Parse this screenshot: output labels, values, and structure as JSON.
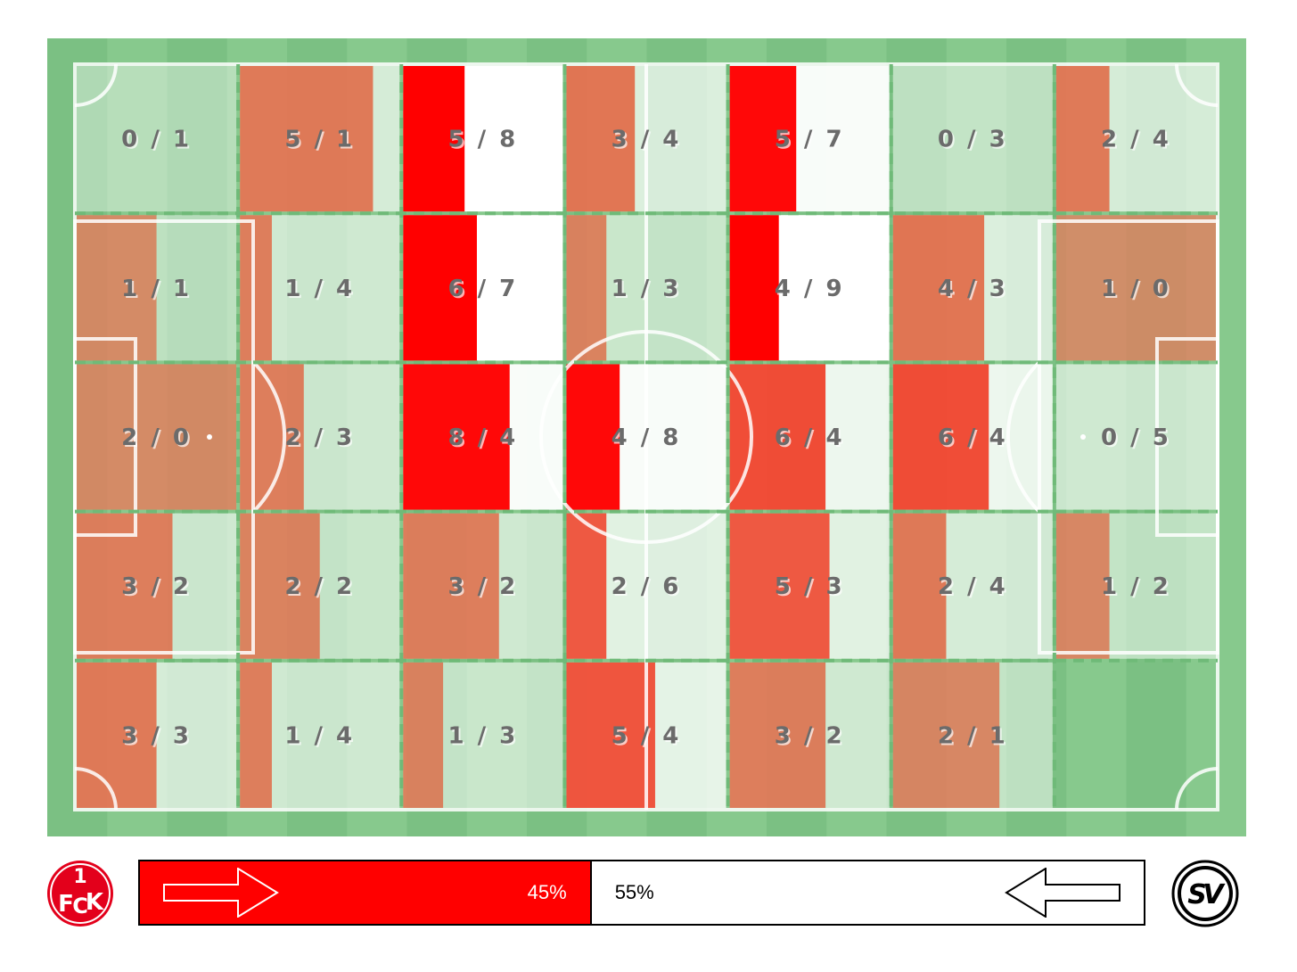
{
  "colors": {
    "home": "#ff0000",
    "away": "#ffffff",
    "grass_light": "#87c98d",
    "grass_dark": "#7bc083",
    "line": "#ffffff",
    "grid_line": "#6fba78"
  },
  "chart_data": {
    "type": "heatmap",
    "title": "",
    "xlabel": "",
    "ylabel": "",
    "rows": 5,
    "cols": 7,
    "cells": [
      [
        {
          "home": 0,
          "away": 1,
          "label": "0 / 1"
        },
        {
          "home": 5,
          "away": 1,
          "label": "5 / 1"
        },
        {
          "home": 5,
          "away": 8,
          "label": "5 / 8"
        },
        {
          "home": 3,
          "away": 4,
          "label": "3 / 4"
        },
        {
          "home": 5,
          "away": 7,
          "label": "5 / 7"
        },
        {
          "home": 0,
          "away": 3,
          "label": "0 / 3"
        },
        {
          "home": 2,
          "away": 4,
          "label": "2 / 4"
        }
      ],
      [
        {
          "home": 1,
          "away": 1,
          "label": "1 / 1"
        },
        {
          "home": 1,
          "away": 4,
          "label": "1 / 4"
        },
        {
          "home": 6,
          "away": 7,
          "label": "6 / 7"
        },
        {
          "home": 1,
          "away": 3,
          "label": "1 / 3"
        },
        {
          "home": 4,
          "away": 9,
          "label": "4 / 9"
        },
        {
          "home": 4,
          "away": 3,
          "label": "4 / 3"
        },
        {
          "home": 1,
          "away": 0,
          "label": "1 / 0"
        }
      ],
      [
        {
          "home": 2,
          "away": 0,
          "label": "2 / 0"
        },
        {
          "home": 2,
          "away": 3,
          "label": "2 / 3"
        },
        {
          "home": 8,
          "away": 4,
          "label": "8 / 4"
        },
        {
          "home": 4,
          "away": 8,
          "label": "4 / 8"
        },
        {
          "home": 6,
          "away": 4,
          "label": "6 / 4"
        },
        {
          "home": 6,
          "away": 4,
          "label": "6 / 4"
        },
        {
          "home": 0,
          "away": 5,
          "label": "0 / 5"
        }
      ],
      [
        {
          "home": 3,
          "away": 2,
          "label": "3 / 2"
        },
        {
          "home": 2,
          "away": 2,
          "label": "2 / 2"
        },
        {
          "home": 3,
          "away": 2,
          "label": "3 / 2"
        },
        {
          "home": 2,
          "away": 6,
          "label": "2 / 6"
        },
        {
          "home": 5,
          "away": 3,
          "label": "5 / 3"
        },
        {
          "home": 2,
          "away": 4,
          "label": "2 / 4"
        },
        {
          "home": 1,
          "away": 2,
          "label": "1 / 2"
        }
      ],
      [
        {
          "home": 3,
          "away": 3,
          "label": "3 / 3"
        },
        {
          "home": 1,
          "away": 4,
          "label": "1 / 4"
        },
        {
          "home": 1,
          "away": 3,
          "label": "1 / 3"
        },
        {
          "home": 5,
          "away": 4,
          "label": "5 / 4"
        },
        {
          "home": 3,
          "away": 2,
          "label": "3 / 2"
        },
        {
          "home": 2,
          "away": 1,
          "label": "2 / 1"
        },
        null
      ]
    ]
  },
  "possession": {
    "home_pct": 45,
    "away_pct": 55,
    "home_label": "45%",
    "away_label": "55%"
  },
  "logos": {
    "home_icon": "fck-crest-icon",
    "away_icon": "sv-crest-icon"
  }
}
